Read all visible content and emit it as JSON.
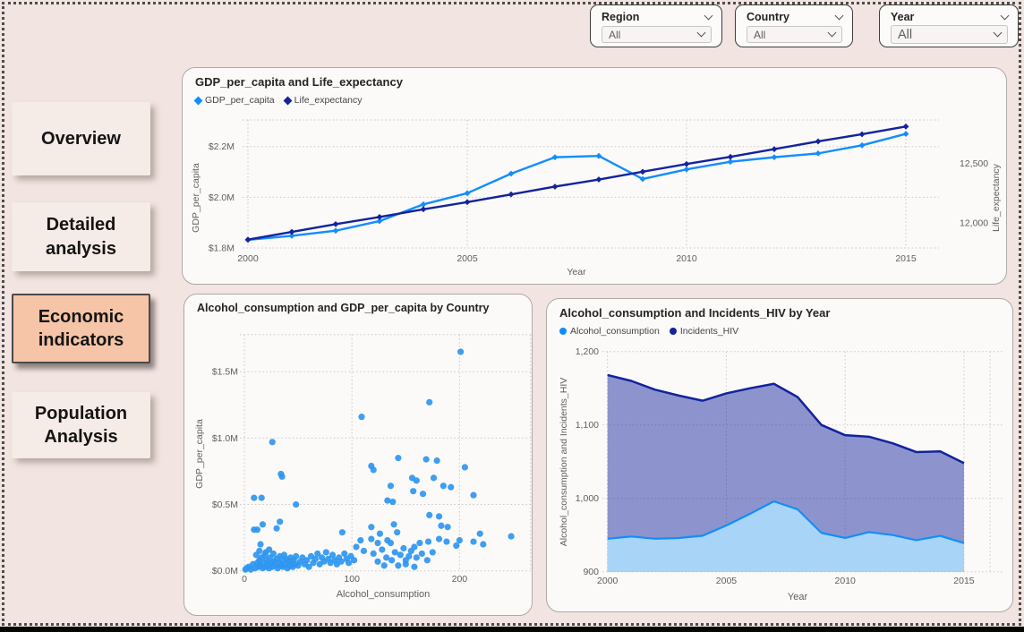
{
  "filters": [
    {
      "label": "Region",
      "value": "All"
    },
    {
      "label": "Country",
      "value": "All"
    },
    {
      "label": "Year",
      "value": "All"
    }
  ],
  "sidebar": {
    "items": [
      {
        "label": "Overview",
        "active": false
      },
      {
        "label": "Detailed analysis",
        "active": false
      },
      {
        "label": "Economic indicators",
        "active": true
      },
      {
        "label": "Population Analysis",
        "active": false
      }
    ]
  },
  "colors": {
    "page_background": "#F2E4E0",
    "card_background": "#FCFAF8",
    "active_nav_background": "#F6C4A7",
    "light_blue": "#118DFF",
    "dark_blue": "#12239E",
    "scatter_dot": "#2E96F0",
    "area_light_fill": "#A8D4F7",
    "area_dark_fill": "rgba(18,35,158,0.47)",
    "axis_text": "#605E5C",
    "gridline": "#C9C7C5"
  },
  "chart_data": [
    {
      "id": "gdp-life-line",
      "type": "line",
      "title": "GDP_per_capita and Life_expectancy",
      "xlabel": "Year",
      "x": [
        2000,
        2001,
        2002,
        2003,
        2004,
        2005,
        2006,
        2007,
        2008,
        2009,
        2010,
        2011,
        2012,
        2013,
        2014,
        2015
      ],
      "x_ticks": [
        2000,
        2005,
        2010,
        2015
      ],
      "series": [
        {
          "name": "GDP_per_capita",
          "axis": "left",
          "color": "#118DFF",
          "marker": "diamond",
          "values": [
            1.832,
            1.848,
            1.868,
            1.906,
            1.972,
            2.016,
            2.093,
            2.158,
            2.163,
            2.072,
            2.11,
            2.14,
            2.158,
            2.173,
            2.205,
            2.25
          ]
        },
        {
          "name": "Life_expectancy",
          "axis": "right",
          "color": "#12239E",
          "marker": "diamond",
          "values": [
            11860,
            11925,
            11990,
            12050,
            12115,
            12175,
            12240,
            12305,
            12365,
            12430,
            12495,
            12555,
            12620,
            12685,
            12745,
            12810
          ]
        }
      ],
      "left_axis": {
        "label": "GDP_per_capita",
        "ticks": [
          1.8,
          2.0,
          2.2
        ],
        "tick_labels": [
          "$1.8M",
          "$2.0M",
          "$2.2M"
        ],
        "range": [
          1.8,
          2.305
        ]
      },
      "right_axis": {
        "label": "Life_expectancy",
        "ticks": [
          12000,
          12500
        ],
        "tick_labels": [
          "12,000",
          "12,500"
        ],
        "range": [
          11790,
          12865
        ]
      },
      "legend_position": "top-left",
      "grid": true
    },
    {
      "id": "alcohol-gdp-scatter",
      "type": "scatter",
      "title": "Alcohol_consumption and GDP_per_capita by Country",
      "xlabel": "Alcohol_consumption",
      "ylabel": "GDP_per_capita",
      "x_ticks": [
        0,
        100,
        200
      ],
      "y_ticks": [
        0,
        0.5,
        1.0,
        1.5
      ],
      "y_tick_labels": [
        "$0.0M",
        "$0.5M",
        "$1.0M",
        "$1.5M"
      ],
      "xlim": [
        0,
        266
      ],
      "ylim": [
        0,
        1.78
      ],
      "dot_color": "#2E96F0",
      "grid": true,
      "points": [
        [
          1,
          0.01
        ],
        [
          2,
          0.02
        ],
        [
          4,
          0.03
        ],
        [
          6,
          0.01
        ],
        [
          8,
          0.05
        ],
        [
          10,
          0.02
        ],
        [
          11,
          0.12
        ],
        [
          12,
          0.06
        ],
        [
          13,
          0.03
        ],
        [
          14,
          0.15
        ],
        [
          14,
          0.08
        ],
        [
          15,
          0.04
        ],
        [
          16,
          0.1
        ],
        [
          17,
          0.02
        ],
        [
          18,
          0.06
        ],
        [
          19,
          0.12
        ],
        [
          20,
          0.03
        ],
        [
          21,
          0.08
        ],
        [
          22,
          0.05
        ],
        [
          23,
          0.02
        ],
        [
          24,
          0.1
        ],
        [
          25,
          0.06
        ],
        [
          26,
          0.03
        ],
        [
          27,
          0.13
        ],
        [
          28,
          0.07
        ],
        [
          29,
          0.04
        ],
        [
          30,
          0.09
        ],
        [
          31,
          0.02
        ],
        [
          32,
          0.06
        ],
        [
          33,
          0.11
        ],
        [
          34,
          0.04
        ],
        [
          35,
          0.08
        ],
        [
          36,
          0.03
        ],
        [
          37,
          0.12
        ],
        [
          38,
          0.05
        ],
        [
          39,
          0.09
        ],
        [
          40,
          0.02
        ],
        [
          41,
          0.07
        ],
        [
          42,
          0.04
        ],
        [
          43,
          0.1
        ],
        [
          44,
          0.06
        ],
        [
          45,
          0.03
        ],
        [
          46,
          0.08
        ],
        [
          47,
          0.05
        ],
        [
          48,
          0.11
        ],
        [
          50,
          0.04
        ],
        [
          52,
          0.07
        ],
        [
          54,
          0.1
        ],
        [
          56,
          0.05
        ],
        [
          58,
          0.08
        ],
        [
          60,
          0.03
        ],
        [
          62,
          0.11
        ],
        [
          64,
          0.06
        ],
        [
          66,
          0.09
        ],
        [
          68,
          0.13
        ],
        [
          70,
          0.05
        ],
        [
          72,
          0.1
        ],
        [
          74,
          0.07
        ],
        [
          76,
          0.14
        ],
        [
          78,
          0.09
        ],
        [
          80,
          0.06
        ],
        [
          82,
          0.12
        ],
        [
          84,
          0.08
        ],
        [
          86,
          0.05
        ],
        [
          88,
          0.1
        ],
        [
          90,
          0.07
        ],
        [
          93,
          0.13
        ],
        [
          95,
          0.09
        ],
        [
          97,
          0.06
        ],
        [
          99,
          0.11
        ],
        [
          102,
          0.08
        ],
        [
          104,
          0.18
        ],
        [
          108,
          0.23
        ],
        [
          109,
          1.16
        ],
        [
          111,
          0.15
        ],
        [
          118,
          0.79
        ],
        [
          118,
          0.33
        ],
        [
          118,
          0.24
        ],
        [
          120,
          0.76
        ],
        [
          120,
          0.13
        ],
        [
          124,
          0.21
        ],
        [
          124,
          0.07
        ],
        [
          126,
          0.28
        ],
        [
          128,
          0.16
        ],
        [
          130,
          0.04
        ],
        [
          132,
          0.1
        ],
        [
          133,
          0.53
        ],
        [
          133,
          0.23
        ],
        [
          136,
          0.64
        ],
        [
          136,
          0.21
        ],
        [
          137,
          0.08
        ],
        [
          138,
          0.52
        ],
        [
          139,
          0.35
        ],
        [
          140,
          0.14
        ],
        [
          142,
          0.29
        ],
        [
          143,
          0.85
        ],
        [
          143,
          0.04
        ],
        [
          145,
          0.12
        ],
        [
          148,
          0.17
        ],
        [
          150,
          0.08
        ],
        [
          150,
          0.05
        ],
        [
          153,
          0.11
        ],
        [
          155,
          0.15
        ],
        [
          156,
          0.7
        ],
        [
          157,
          0.6
        ],
        [
          158,
          0.18
        ],
        [
          158,
          0.03
        ],
        [
          160,
          0.68
        ],
        [
          160,
          0.1
        ],
        [
          163,
          0.21
        ],
        [
          165,
          0.13
        ],
        [
          166,
          0.58
        ],
        [
          169,
          0.84
        ],
        [
          170,
          0.08
        ],
        [
          171,
          0.22
        ],
        [
          172,
          1.27
        ],
        [
          172,
          0.42
        ],
        [
          175,
          0.14
        ],
        [
          176,
          0.7
        ],
        [
          179,
          0.83
        ],
        [
          181,
          0.41
        ],
        [
          181,
          0.24
        ],
        [
          183,
          0.34
        ],
        [
          185,
          0.64
        ],
        [
          188,
          0.22
        ],
        [
          189,
          0.33
        ],
        [
          192,
          0.63
        ],
        [
          197,
          0.19
        ],
        [
          200,
          0.23
        ],
        [
          201,
          1.65
        ],
        [
          205,
          0.78
        ],
        [
          213,
          0.57
        ],
        [
          213,
          0.22
        ],
        [
          219,
          0.28
        ],
        [
          222,
          0.2
        ],
        [
          248,
          0.26
        ],
        [
          26,
          0.97
        ],
        [
          34,
          0.73
        ],
        [
          35,
          0.71
        ],
        [
          9,
          0.55
        ],
        [
          16,
          0.55
        ],
        [
          48,
          0.5
        ],
        [
          33,
          0.37
        ],
        [
          30,
          0.32
        ],
        [
          9,
          0.31
        ],
        [
          17,
          0.35
        ],
        [
          12,
          0.31
        ],
        [
          91,
          0.29
        ],
        [
          23,
          0.16
        ],
        [
          15,
          0.2
        ],
        [
          20,
          0.14
        ]
      ]
    },
    {
      "id": "alcohol-hiv-area",
      "type": "area",
      "title": "Alcohol_consumption and Incidents_HIV by Year",
      "xlabel": "Year",
      "ylabel": "Alcohol_consumption and Incidents_HIV",
      "x": [
        2000,
        2001,
        2002,
        2003,
        2004,
        2005,
        2006,
        2007,
        2008,
        2009,
        2010,
        2011,
        2012,
        2013,
        2014,
        2015
      ],
      "x_ticks": [
        2000,
        2005,
        2010,
        2015
      ],
      "y_ticks": [
        900,
        1000,
        1100,
        1200
      ],
      "ylim": [
        900,
        1200
      ],
      "grid": true,
      "legend_position": "top-left",
      "series": [
        {
          "name": "Alcohol_consumption",
          "color": "#118DFF",
          "fill": "#A8D4F7",
          "values": [
            945,
            948,
            945,
            946,
            949,
            963,
            979,
            996,
            985,
            953,
            946,
            954,
            950,
            943,
            949,
            939
          ]
        },
        {
          "name": "Incidents_HIV",
          "color": "#12239E",
          "fill": "rgba(18,35,158,0.47)",
          "values": [
            1168,
            1160,
            1148,
            1140,
            1133,
            1143,
            1150,
            1156,
            1138,
            1100,
            1086,
            1084,
            1075,
            1063,
            1064,
            1048
          ]
        }
      ]
    }
  ]
}
